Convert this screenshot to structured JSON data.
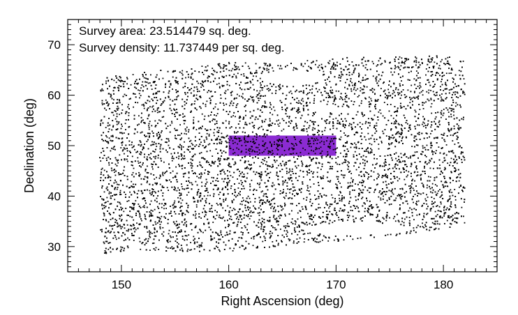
{
  "chart_data": {
    "type": "scatter",
    "title": "",
    "xlabel": "Right Ascension (deg)",
    "ylabel": "Declination (deg)",
    "xlim": [
      145,
      185
    ],
    "ylim": [
      25,
      75
    ],
    "xticks": [
      150,
      160,
      170,
      180
    ],
    "yticks": [
      30,
      40,
      50,
      60,
      70
    ],
    "x_minor_step": 1,
    "y_minor_step": 1,
    "grid": false,
    "annotations": [
      "Survey area: 23.514479 sq. deg.",
      "Survey density: 11.737449 per sq. deg."
    ],
    "series": [
      {
        "kind": "point-cloud",
        "color": "#000000",
        "ra_range": [
          148,
          182
        ],
        "dec_range": [
          28,
          68
        ],
        "footprint_outline": [
          [
            148,
            63.5
          ],
          [
            152,
            64.5
          ],
          [
            156,
            65.5
          ],
          [
            160,
            66.5
          ],
          [
            165,
            66.5
          ],
          [
            170,
            67.5
          ],
          [
            175,
            67.5
          ],
          [
            180,
            68.0
          ],
          [
            182,
            67.0
          ],
          [
            182,
            34.0
          ],
          [
            180,
            33.5
          ],
          [
            175,
            32.0
          ],
          [
            170,
            31.0
          ],
          [
            165,
            30.0
          ],
          [
            160,
            29.0
          ],
          [
            155,
            29.0
          ],
          [
            150,
            29.0
          ],
          [
            148,
            28.5
          ]
        ]
      },
      {
        "kind": "region",
        "color": "#8b2bd2",
        "ra": [
          160,
          170
        ],
        "dec": [
          48,
          52
        ]
      }
    ]
  }
}
